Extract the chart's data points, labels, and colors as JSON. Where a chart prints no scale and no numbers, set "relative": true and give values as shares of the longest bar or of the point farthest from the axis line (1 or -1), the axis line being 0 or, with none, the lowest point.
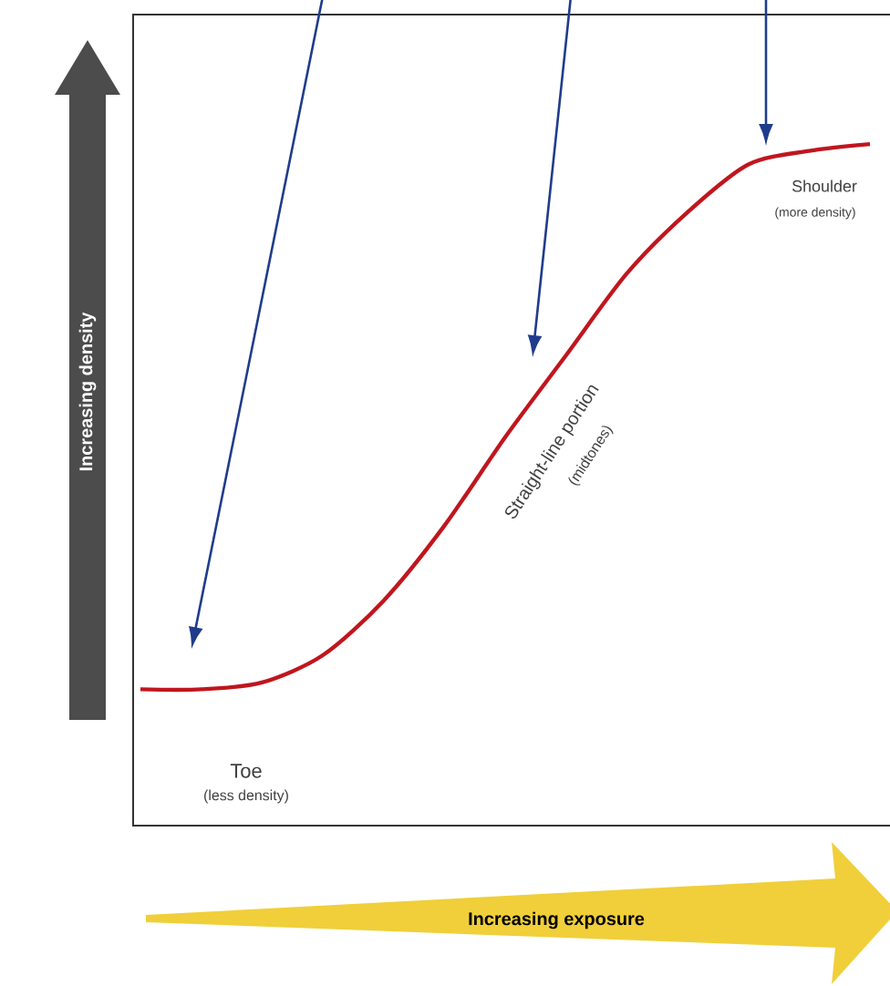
{
  "chart_data": {
    "type": "line",
    "relative": true,
    "xlabel": "Increasing exposure",
    "ylabel": "Increasing density",
    "categories": [
      null,
      null,
      null,
      null,
      null,
      null,
      null,
      null,
      null,
      null,
      null,
      null,
      null
    ],
    "series": [
      {
        "color": "#c0161e",
        "values": [
          0.2,
          0.2,
          0.21,
          0.25,
          0.33,
          0.44,
          0.57,
          0.69,
          0.81,
          0.9,
          0.97,
          0.99,
          1
        ]
      }
    ],
    "annotations": [
      "Toe",
      "(less density)",
      "Straight-line portion",
      "(midtones)",
      "Shoulder",
      "(more density)"
    ]
  }
}
